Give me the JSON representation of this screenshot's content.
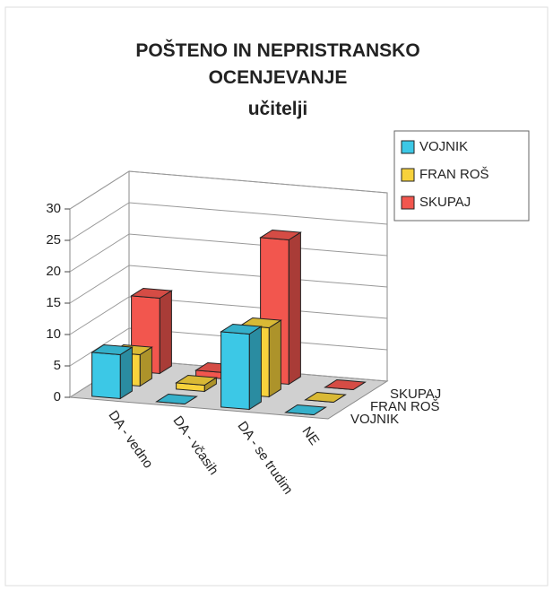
{
  "chart_data": {
    "type": "bar3d",
    "title": "POŠTENO IN NEPRISTRANSKO OCENJEVANJE",
    "subtitle": "učitelji",
    "categories": [
      "DA - vedno",
      "DA - včasih",
      "DA - se trudim",
      "NE"
    ],
    "series": [
      {
        "name": "VOJNIK",
        "color": "#3cc8e6",
        "values": [
          7,
          0,
          12,
          0
        ]
      },
      {
        "name": "FRAN ROŠ",
        "color": "#f7d23c",
        "values": [
          5,
          1,
          11,
          0
        ]
      },
      {
        "name": "SKUPAJ",
        "color": "#f2564e",
        "values": [
          12,
          1,
          23,
          0
        ]
      }
    ],
    "ylim": [
      0,
      30
    ],
    "yticks": [
      0,
      5,
      10,
      15,
      20,
      25,
      30
    ],
    "grid": true,
    "legend": "top-right"
  }
}
